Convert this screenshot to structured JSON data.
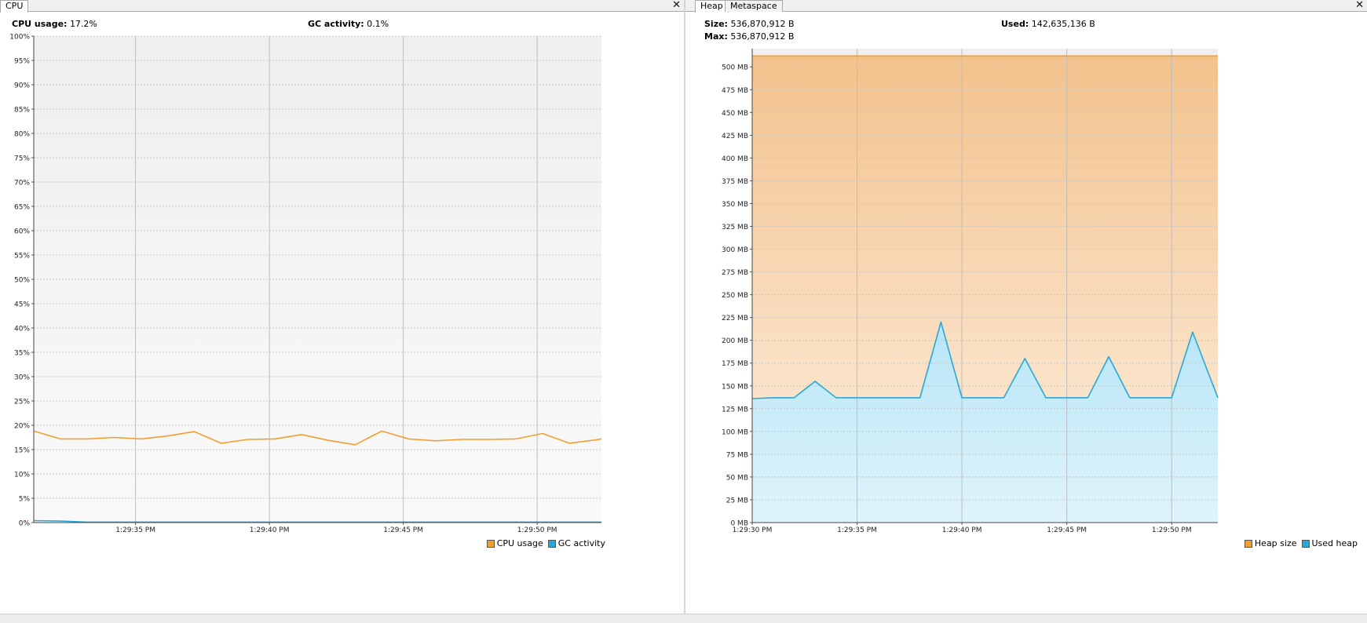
{
  "cpu_panel": {
    "tab_label": "CPU",
    "cpu_usage_label": "CPU usage:",
    "cpu_usage_value": "17.2%",
    "gc_activity_label": "GC activity:",
    "gc_activity_value": "0.1%",
    "legend": [
      {
        "label": "CPU usage",
        "color": "#f0a030"
      },
      {
        "label": "GC activity",
        "color": "#2aa8d8"
      }
    ]
  },
  "memory_panel": {
    "tabs": [
      {
        "label": "Heap",
        "active": true
      },
      {
        "label": "Metaspace",
        "active": false
      }
    ],
    "size_label": "Size:",
    "size_value": "536,870,912 B",
    "max_label": "Max:",
    "max_value": "536,870,912 B",
    "used_label": "Used:",
    "used_value": "142,635,136 B",
    "legend": [
      {
        "label": "Heap size",
        "color": "#f0a030"
      },
      {
        "label": "Used heap",
        "color": "#2aa8d8"
      }
    ]
  },
  "chart_data": [
    {
      "type": "line",
      "y_ticks": [
        "0%",
        "5%",
        "10%",
        "15%",
        "20%",
        "25%",
        "30%",
        "35%",
        "40%",
        "45%",
        "50%",
        "55%",
        "60%",
        "65%",
        "70%",
        "75%",
        "80%",
        "85%",
        "90%",
        "95%",
        "100%"
      ],
      "ylim": [
        0,
        100
      ],
      "x_range": [
        31.2,
        52.4
      ],
      "x_ticks": [
        {
          "t": 35,
          "label": "1:29:35 PM"
        },
        {
          "t": 40,
          "label": "1:29:40 PM"
        },
        {
          "t": 45,
          "label": "1:29:45 PM"
        },
        {
          "t": 50,
          "label": "1:29:50 PM"
        }
      ],
      "grid": true,
      "series": [
        {
          "name": "CPU usage",
          "color": "#f0a030",
          "x": [
            31.2,
            32.2,
            33.2,
            34.2,
            35.2,
            36.2,
            37.2,
            38.2,
            39.2,
            40.2,
            41.2,
            42.2,
            43.2,
            44.2,
            45.2,
            46.2,
            47.2,
            48.2,
            49.2,
            50.2,
            51.2,
            52.2,
            52.4
          ],
          "y": [
            18.8,
            17.2,
            17.2,
            17.5,
            17.2,
            17.8,
            18.7,
            16.3,
            17.1,
            17.2,
            18.1,
            16.9,
            16.0,
            18.8,
            17.2,
            16.8,
            17.1,
            17.1,
            17.2,
            18.3,
            16.3,
            17.0,
            17.2
          ]
        },
        {
          "name": "GC activity",
          "color": "#2aa8d8",
          "x": [
            31.2,
            32.2,
            33.2,
            34.2,
            35.2,
            40.2,
            45.2,
            50.2,
            52.4
          ],
          "y": [
            0.4,
            0.3,
            0.1,
            0.1,
            0.1,
            0.1,
            0.1,
            0.1,
            0.1
          ]
        }
      ]
    },
    {
      "type": "area",
      "y_ticks": [
        "0 MB",
        "25 MB",
        "50 MB",
        "75 MB",
        "100 MB",
        "125 MB",
        "150 MB",
        "175 MB",
        "200 MB",
        "225 MB",
        "250 MB",
        "275 MB",
        "300 MB",
        "325 MB",
        "350 MB",
        "375 MB",
        "400 MB",
        "425 MB",
        "450 MB",
        "475 MB",
        "500 MB"
      ],
      "ylim": [
        0,
        520
      ],
      "x_range": [
        30,
        52.2
      ],
      "x_ticks": [
        {
          "t": 30,
          "label": "1:29:30 PM"
        },
        {
          "t": 35,
          "label": "1:29:35 PM"
        },
        {
          "t": 40,
          "label": "1:29:40 PM"
        },
        {
          "t": 45,
          "label": "1:29:45 PM"
        },
        {
          "t": 50,
          "label": "1:29:50 PM"
        }
      ],
      "grid": true,
      "series": [
        {
          "name": "Heap size",
          "color": "#f0a030",
          "x": [
            30,
            52.2
          ],
          "y": [
            512,
            512
          ]
        },
        {
          "name": "Used heap",
          "color": "#2aa8d8",
          "x": [
            30,
            31,
            32,
            33,
            34,
            35,
            36,
            37,
            38,
            39,
            40,
            41,
            42,
            43,
            44,
            45,
            46,
            47,
            48,
            49,
            50,
            51,
            52.2
          ],
          "y": [
            136,
            137,
            137,
            155,
            137,
            137,
            137,
            137,
            137,
            220,
            137,
            137,
            137,
            180,
            137,
            137,
            137,
            182,
            137,
            137,
            137,
            209,
            137
          ]
        }
      ]
    }
  ]
}
